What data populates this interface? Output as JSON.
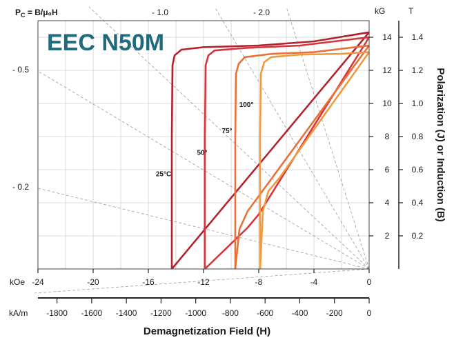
{
  "chart_data": {
    "type": "line",
    "title": "EEC N50M",
    "xlabel": "Demagnetization Field (H)",
    "ylabel": "Polarization (J) or Induction (B)",
    "x_unit_koe": "kOe",
    "x_unit_kam": "kA/m",
    "y_unit_kg": "kG",
    "y_unit_t": "T",
    "pc_label": "P",
    "pc_sub": "C",
    "pc_formula": " = B/μ₀H",
    "xlim_koe": [
      -24,
      0
    ],
    "ylim_kg": [
      0,
      15
    ],
    "x_ticks_koe": [
      "-24",
      "-20",
      "-16",
      "-12",
      "-8",
      "-4",
      "0"
    ],
    "x_ticks_kam": [
      "-1800",
      "-1600",
      "-1400",
      "-1200",
      "-1000",
      "-800",
      "-600",
      "-400",
      "-200",
      "0"
    ],
    "y_ticks_kg": [
      "2",
      "4",
      "6",
      "8",
      "10",
      "12",
      "14"
    ],
    "y_ticks_t": [
      "0.2",
      "0.4",
      "0.6",
      "0.8",
      "1.0",
      "1.2",
      "1.4"
    ],
    "pc_lines": [
      {
        "label": "- 1.0",
        "side": "top"
      },
      {
        "label": "- 2.0",
        "side": "top"
      },
      {
        "label": "- 0.5",
        "side": "left"
      },
      {
        "label": "- 0.2",
        "side": "left"
      }
    ],
    "series": [
      {
        "name": "25°C",
        "color": "#b3232d",
        "j_curve": [
          [
            -14.3,
            0
          ],
          [
            -14.3,
            8
          ],
          [
            -14.25,
            12.3
          ],
          [
            -14.1,
            12.9
          ],
          [
            -13.6,
            13.25
          ],
          [
            -12,
            13.4
          ],
          [
            -8,
            13.5
          ],
          [
            -4,
            13.75
          ],
          [
            0,
            14.3
          ]
        ],
        "b_line": [
          [
            -14.3,
            0
          ],
          [
            0,
            14.3
          ]
        ]
      },
      {
        "name": "50°",
        "color": "#d8343b",
        "j_curve": [
          [
            -11.9,
            0
          ],
          [
            -11.9,
            8
          ],
          [
            -11.85,
            12.3
          ],
          [
            -11.65,
            12.9
          ],
          [
            -11.2,
            13.2
          ],
          [
            -9,
            13.35
          ],
          [
            -5,
            13.5
          ],
          [
            0,
            14.0
          ]
        ],
        "b_line": [
          [
            -11.9,
            0
          ],
          [
            -8.8,
            2.5
          ],
          [
            -8,
            3.3
          ],
          [
            0,
            14.0
          ]
        ]
      },
      {
        "name": "75°",
        "color": "#ea7136",
        "j_curve": [
          [
            -9.7,
            0
          ],
          [
            -9.7,
            8
          ],
          [
            -9.65,
            11.8
          ],
          [
            -9.45,
            12.4
          ],
          [
            -9,
            12.8
          ],
          [
            -7,
            13.0
          ],
          [
            -4,
            13.1
          ],
          [
            0,
            13.5
          ]
        ],
        "b_line": [
          [
            -9.7,
            0
          ],
          [
            -9.4,
            2.4
          ],
          [
            -8.8,
            3.5
          ],
          [
            -8,
            4.4
          ],
          [
            0,
            13.5
          ]
        ]
      },
      {
        "name": "100°",
        "color": "#f0993e",
        "j_curve": [
          [
            -7.9,
            0
          ],
          [
            -7.9,
            8
          ],
          [
            -7.85,
            11.8
          ],
          [
            -7.6,
            12.5
          ],
          [
            -7.1,
            12.8
          ],
          [
            -5,
            12.95
          ],
          [
            -2,
            13.0
          ],
          [
            0,
            13.1
          ]
        ],
        "b_line": [
          [
            -7.9,
            0
          ],
          [
            -7.7,
            3.5
          ],
          [
            -7.3,
            4.7
          ],
          [
            -6.5,
            5.5
          ],
          [
            0,
            13.1
          ]
        ]
      }
    ],
    "grid": true,
    "legend": "inline labels"
  }
}
